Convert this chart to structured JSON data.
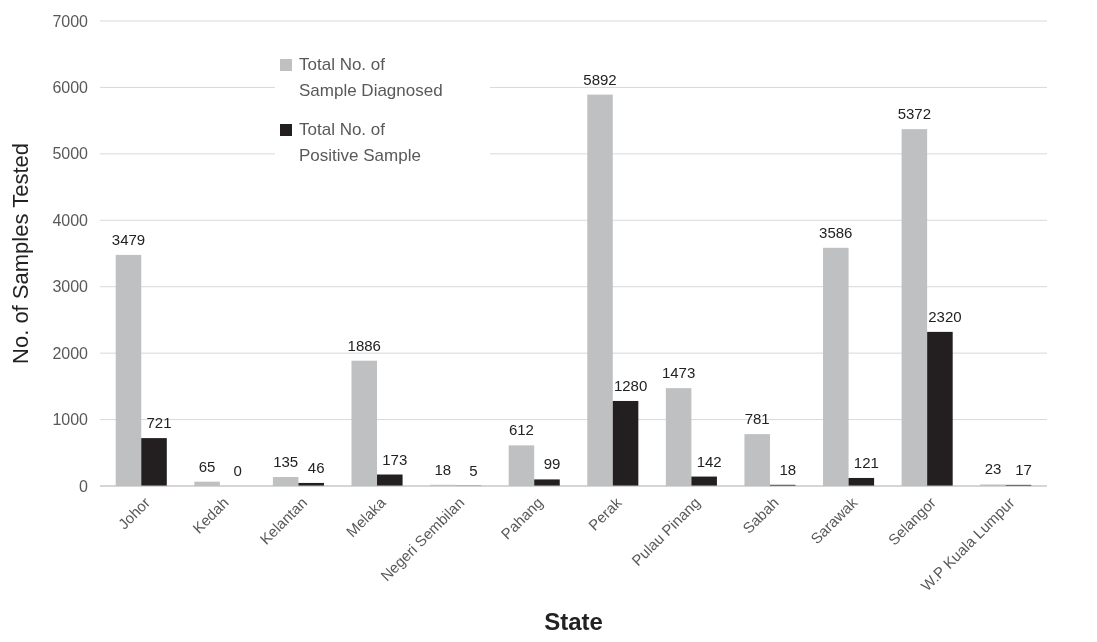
{
  "chart_data": {
    "type": "bar",
    "xlabel": "State",
    "ylabel": "No. of  Samples  Tested",
    "categories": [
      "Johor",
      "Kedah",
      "Kelantan",
      "Melaka",
      "Negeri Sembilan",
      "Pahang",
      "Perak",
      "Pulau Pinang",
      "Sabah",
      "Sarawak",
      "Selangor",
      "W.P Kuala Lumpur"
    ],
    "series": [
      {
        "name": "Total No. of Sample Diagnosed",
        "color": "#bfc0c2",
        "values": [
          3479,
          65,
          135,
          1886,
          18,
          612,
          5892,
          1473,
          781,
          3586,
          5372,
          23
        ]
      },
      {
        "name": "Total No. of Positive Sample",
        "color": "#231f20",
        "values": [
          721,
          0,
          46,
          173,
          5,
          99,
          1280,
          142,
          18,
          121,
          2320,
          17
        ]
      }
    ],
    "ylim": [
      0,
      7000
    ],
    "yticks": [
      0,
      1000,
      2000,
      3000,
      4000,
      5000,
      6000,
      7000
    ],
    "grid": "y",
    "legend": "top left",
    "data_labels": true
  }
}
